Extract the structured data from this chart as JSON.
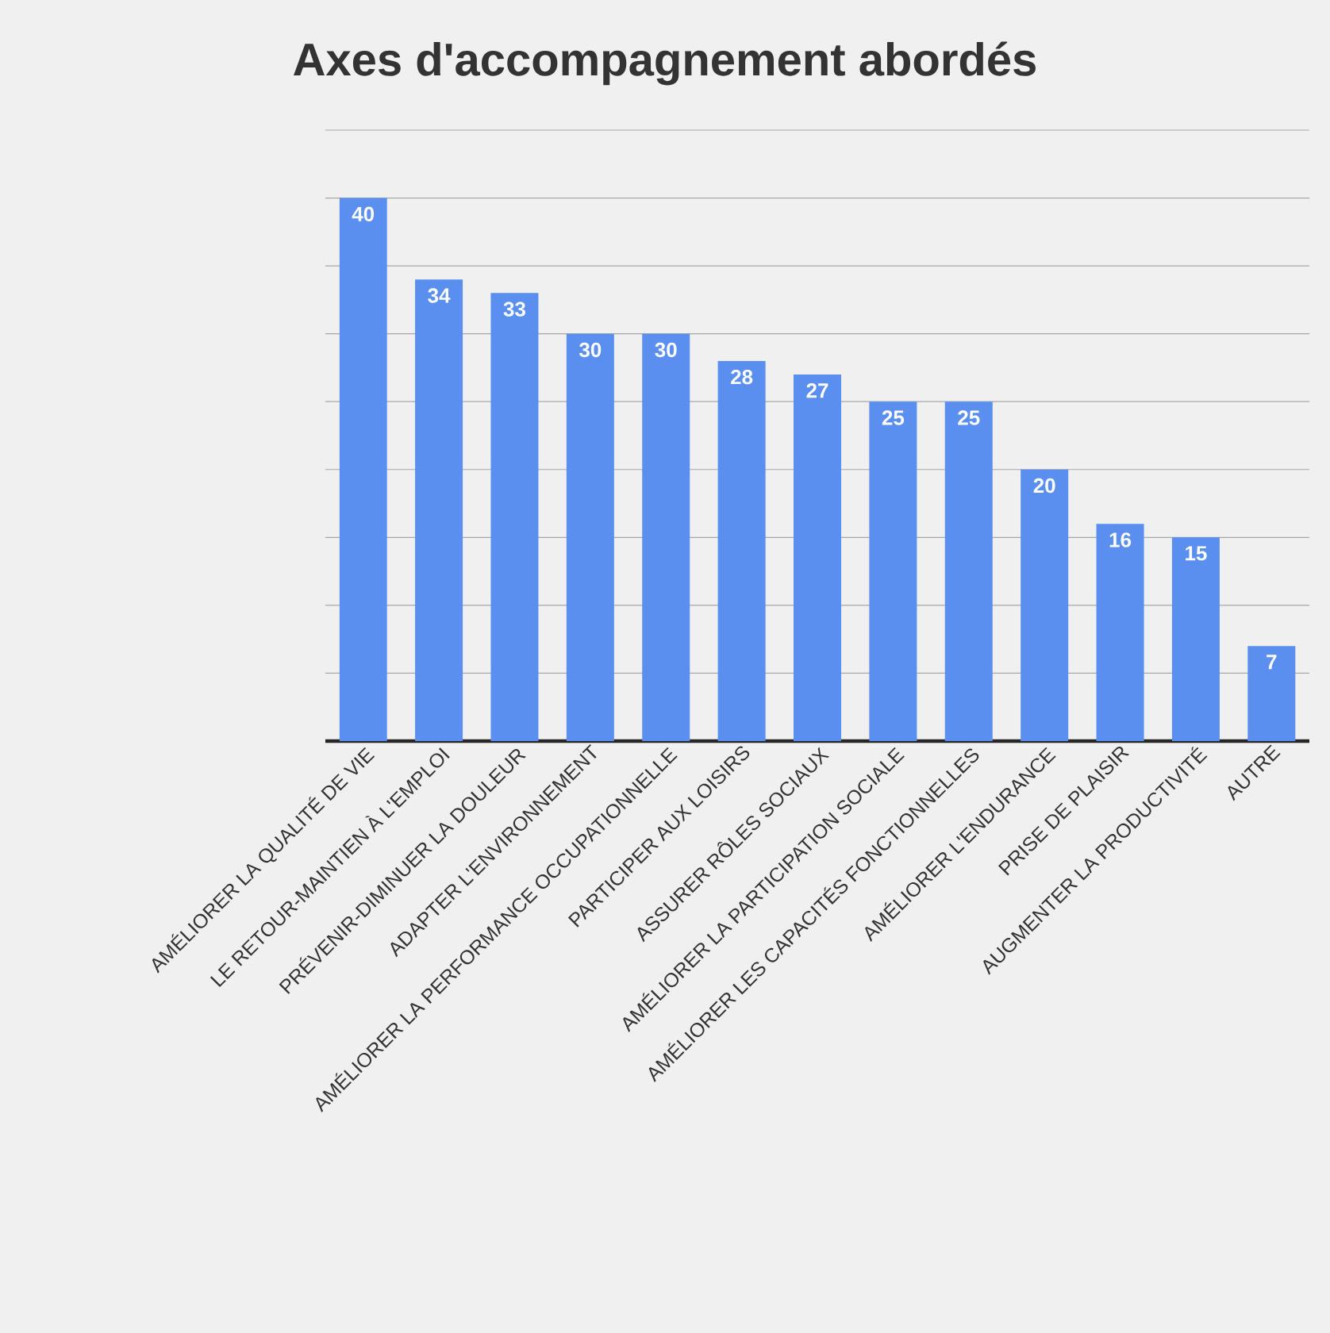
{
  "chart_data": {
    "type": "bar",
    "title": "Axes d'accompagnement abordés",
    "categories": [
      "AMÉLIORER LA QUALITÉ DE VIE",
      "LE RETOUR-MAINTIEN À L'EMPLOI",
      "PRÉVENIR-DIMINUER LA DOULEUR",
      "ADAPTER L'ENVIRONNEMENT",
      "AMÉLIORER LA PERFORMANCE OCCUPATIONNELLE",
      "PARTICIPER AUX LOISIRS",
      "ASSURER RÔLES SOCIAUX",
      "AMÉLIORER LA PARTICIPATION SOCIALE",
      "AMÉLIORER LES CAPACITÉS FONCTIONNELLES",
      "AMÉLIORER L'ENDURANCE",
      "PRISE DE PLAISIR",
      "AUGMENTER LA PRODUCTIVITÉ",
      "AUTRE"
    ],
    "values": [
      40,
      34,
      33,
      30,
      30,
      28,
      27,
      25,
      25,
      20,
      16,
      15,
      7
    ],
    "color": "#5a8ff0",
    "ylim": [
      0,
      45
    ],
    "yticks": [
      {
        "value": 5,
        "label": null
      },
      {
        "value": 10,
        "label": null
      },
      {
        "value": 15,
        "label": null
      },
      {
        "value": 20,
        "label": null
      },
      {
        "value": 25,
        "label": null
      },
      {
        "value": 30,
        "label": null
      },
      {
        "value": 35,
        "label": null
      },
      {
        "value": 40,
        "label": null
      },
      {
        "value": 45,
        "label": null
      }
    ],
    "grid": "y",
    "tick_labels": "x",
    "data_labels": true
  }
}
